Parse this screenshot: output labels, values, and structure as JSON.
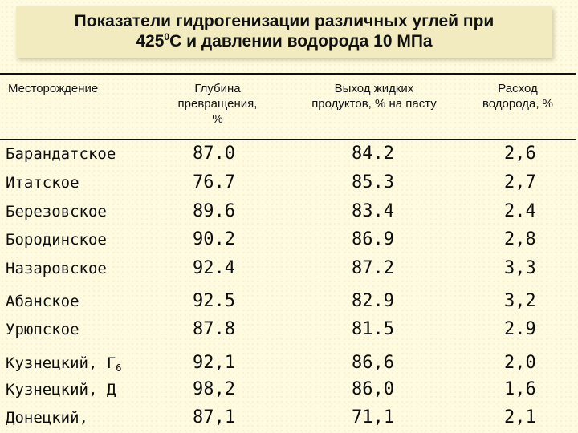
{
  "title": {
    "line1": "Показатели гидрогенизации различных углей при",
    "line2_pre": "425",
    "line2_sup": "0",
    "line2_post": "С и давлении водорода 10 МПа"
  },
  "header": {
    "col1": "Месторождение",
    "col2": [
      "Глубина",
      "превращения,",
      "%"
    ],
    "col3": [
      "Выход жидких",
      "продуктов, % на пасту"
    ],
    "col4": [
      "Расход",
      "водорода, %"
    ]
  },
  "rows": [
    {
      "name": "Барандатское",
      "sub": "",
      "depth": "87.0",
      "yield": "84.2",
      "hydrogen": "2,6"
    },
    {
      "name": "Итатское",
      "sub": "",
      "depth": "76.7",
      "yield": "85.3",
      "hydrogen": "2,7"
    },
    {
      "name": "Березовское",
      "sub": "",
      "depth": "89.6",
      "yield": "83.4",
      "hydrogen": "2.4"
    },
    {
      "name": "Бородинское",
      "sub": "",
      "depth": "90.2",
      "yield": "86.9",
      "hydrogen": "2,8"
    },
    {
      "name": "Назаровское",
      "sub": "",
      "depth": "92.4",
      "yield": "87.2",
      "hydrogen": "3,3"
    },
    {
      "name": "Абанское",
      "sub": "",
      "depth": "92.5",
      "yield": "82.9",
      "hydrogen": "3,2"
    },
    {
      "name": "Урюпское",
      "sub": "",
      "depth": "87.8",
      "yield": "81.5",
      "hydrogen": "2.9"
    },
    {
      "name": "Кузнецкий, Г",
      "sub": "6",
      "depth": "92,1",
      "yield": "86,6",
      "hydrogen": "2,0"
    },
    {
      "name": "Кузнецкий, Д",
      "sub": "",
      "depth": "98,2",
      "yield": "86,0",
      "hydrogen": "1,6"
    },
    {
      "name": "Донецкий,",
      "sub": "",
      "depth": "87,1",
      "yield": "71,1",
      "hydrogen": "2,1"
    }
  ]
}
